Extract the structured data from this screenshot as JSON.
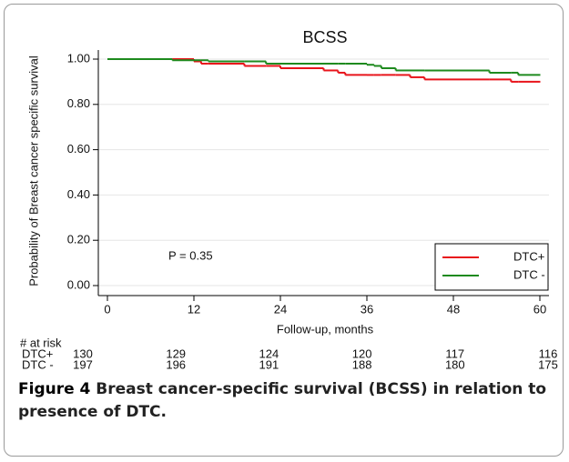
{
  "chart_data": {
    "type": "line",
    "step": true,
    "title": "BCSS",
    "y_label": "Probability of Breast cancer specific survival",
    "x_label": "Follow-up, months",
    "annotation": "P = 0.35",
    "x": [
      0,
      9,
      12,
      13,
      14,
      19,
      22,
      24,
      30,
      32,
      33,
      36,
      37,
      38,
      40,
      42,
      44,
      53,
      56,
      57,
      60
    ],
    "series": [
      {
        "name": "DTC+",
        "color": "#e8141b",
        "values": [
          1,
          1,
          0.99,
          0.98,
          0.98,
          0.97,
          0.97,
          0.96,
          0.95,
          0.94,
          0.93,
          0.93,
          0.93,
          0.93,
          0.93,
          0.92,
          0.91,
          0.91,
          0.9,
          0.9,
          0.9
        ]
      },
      {
        "name": "DTC -",
        "color": "#1e8a1e",
        "values": [
          1,
          0.995,
          0.995,
          0.995,
          0.99,
          0.99,
          0.98,
          0.98,
          0.98,
          0.98,
          0.98,
          0.975,
          0.97,
          0.96,
          0.95,
          0.95,
          0.95,
          0.94,
          0.94,
          0.93,
          0.93
        ]
      }
    ],
    "xlim": [
      0,
      60
    ],
    "xticks": [
      0,
      12,
      24,
      36,
      48,
      60
    ],
    "ylim": [
      0,
      1
    ],
    "yticks": [
      {
        "value": 0,
        "label": "0.00"
      },
      {
        "value": 0.2,
        "label": "0.20"
      },
      {
        "value": 0.4,
        "label": "0.40"
      },
      {
        "value": 0.6,
        "label": "0.60"
      },
      {
        "value": 0.8,
        "label": "0.80"
      },
      {
        "value": 1,
        "label": "1.00"
      }
    ],
    "grid": true,
    "legend": "lower right",
    "risk_table": {
      "title": "# at risk",
      "rows": [
        {
          "name": "DTC+",
          "counts": [
            130,
            129,
            124,
            120,
            117,
            116
          ]
        },
        {
          "name": "DTC -",
          "counts": [
            197,
            196,
            191,
            188,
            180,
            175
          ]
        }
      ]
    }
  },
  "caption": {
    "label": "Figure 4",
    "text": "Breast cancer-specific survival (BCSS) in relation to presence of DTC."
  }
}
